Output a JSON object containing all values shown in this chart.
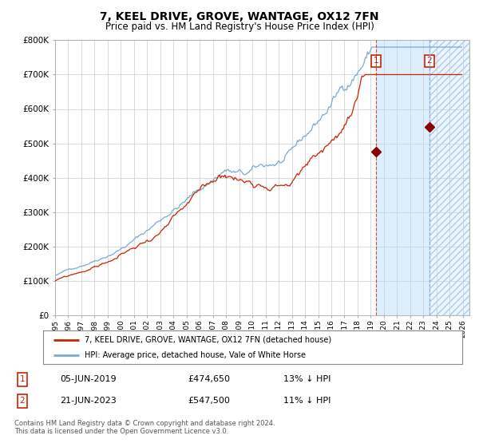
{
  "title": "7, KEEL DRIVE, GROVE, WANTAGE, OX12 7FN",
  "subtitle": "Price paid vs. HM Land Registry's House Price Index (HPI)",
  "ylabel_ticks": [
    "£0",
    "£100K",
    "£200K",
    "£300K",
    "£400K",
    "£500K",
    "£600K",
    "£700K",
    "£800K"
  ],
  "ytick_values": [
    0,
    100000,
    200000,
    300000,
    400000,
    500000,
    600000,
    700000,
    800000
  ],
  "ylim": [
    0,
    800000
  ],
  "hpi_color": "#7aaad4",
  "price_color": "#cc2200",
  "marker1_x": 2019.42,
  "marker1_price": 474650,
  "marker1_date": "05-JUN-2019",
  "marker1_label": "13% ↓ HPI",
  "marker2_x": 2023.46,
  "marker2_price": 547500,
  "marker2_date": "21-JUN-2023",
  "marker2_label": "11% ↓ HPI",
  "legend_label1": "7, KEEL DRIVE, GROVE, WANTAGE, OX12 7FN (detached house)",
  "legend_label2": "HPI: Average price, detached house, Vale of White Horse",
  "footnote": "Contains HM Land Registry data © Crown copyright and database right 2024.\nThis data is licensed under the Open Government Licence v3.0.",
  "shade_color": "#ddeeff"
}
